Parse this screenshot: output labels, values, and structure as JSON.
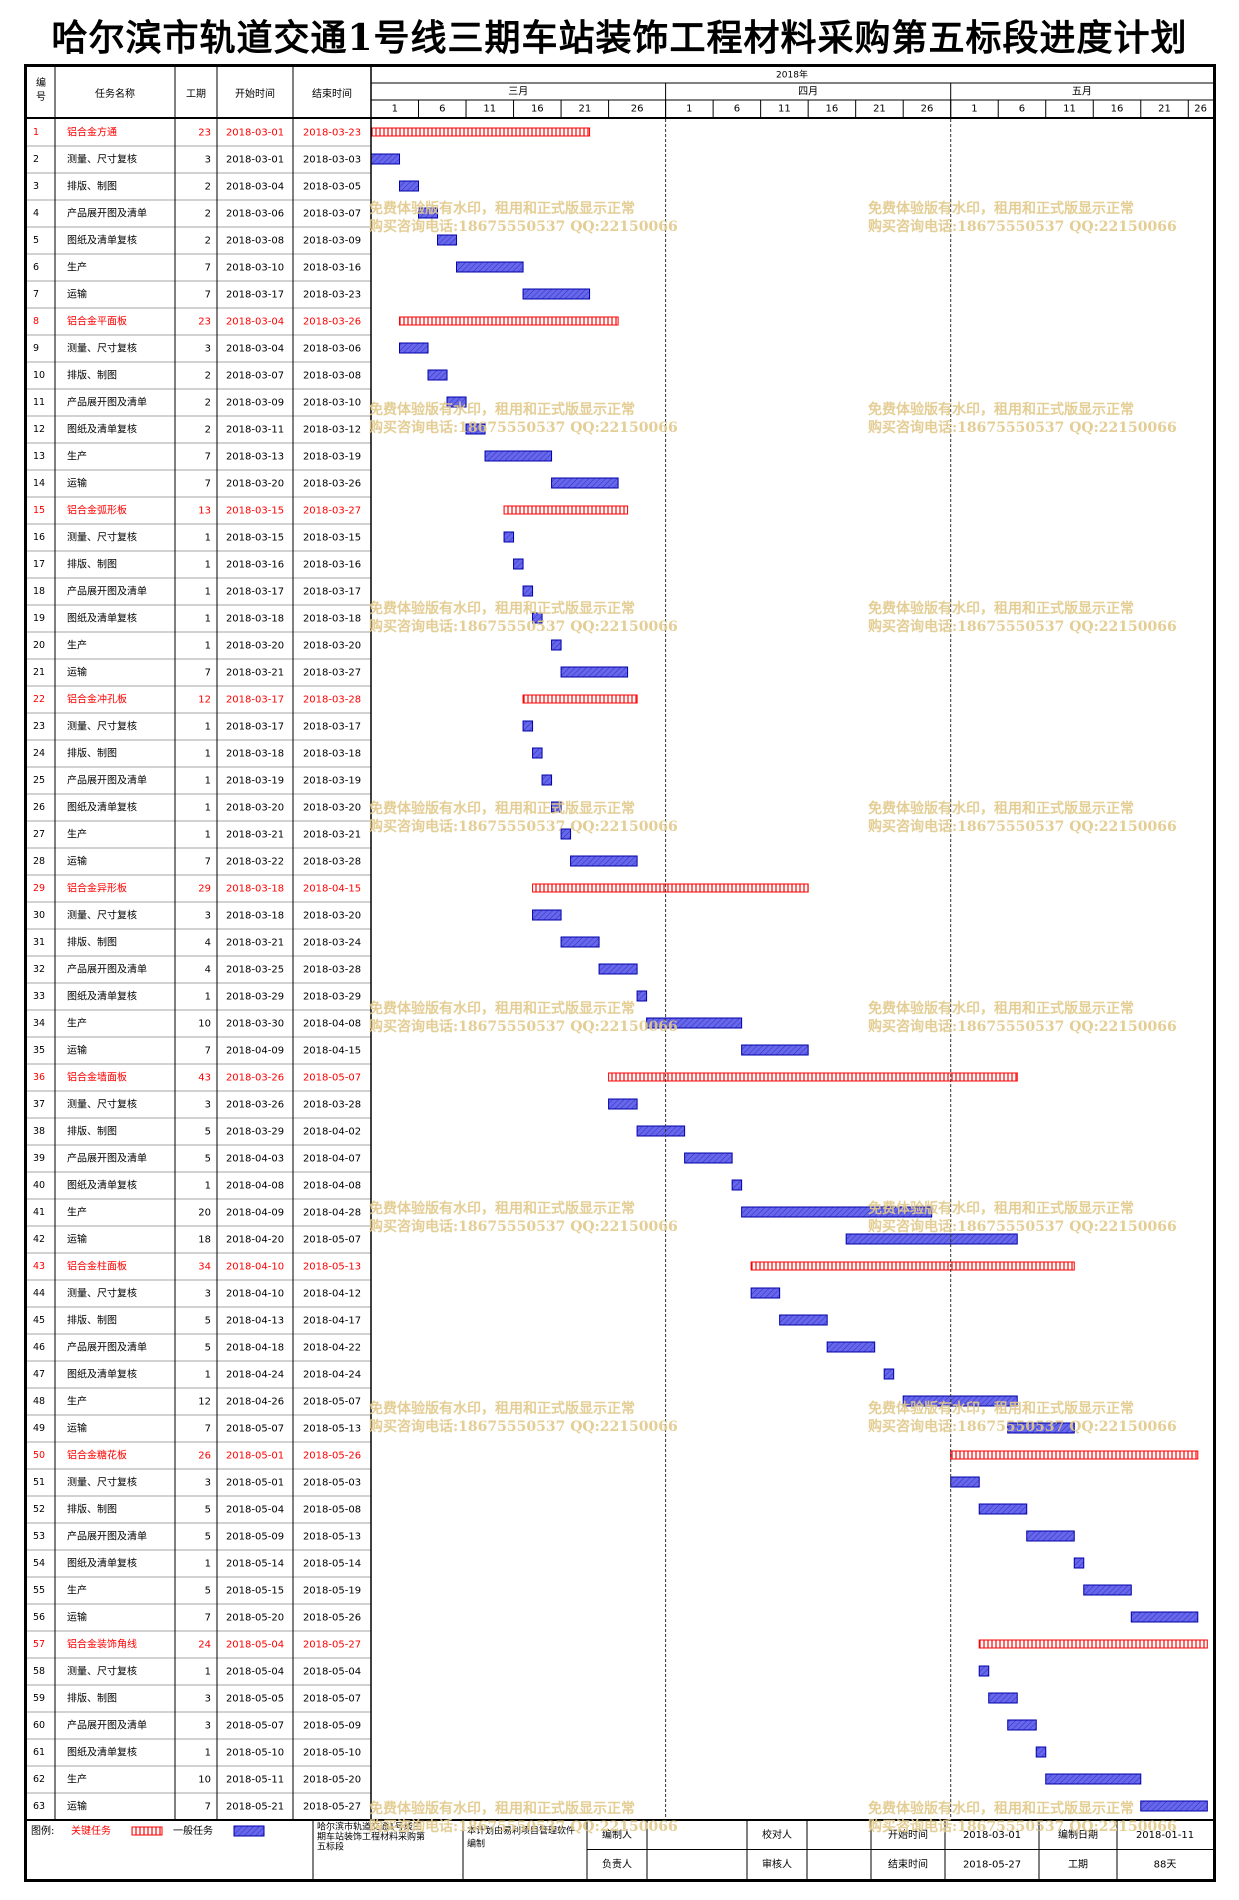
{
  "title": "哈尔滨市轨道交通1号线三期车站装饰工程材料采购第五标段进度计划",
  "columns": {
    "id": "编号",
    "name": "任务名称",
    "duration": "工期",
    "start": "开始时间",
    "end": "结束时间"
  },
  "chart_data": {
    "type": "gantt",
    "year_label": "2018年",
    "months": [
      {
        "label": "三月",
        "days": [
          1,
          6,
          11,
          16,
          21,
          26
        ]
      },
      {
        "label": "四月",
        "days": [
          1,
          6,
          11,
          16,
          21,
          26
        ]
      },
      {
        "label": "五月",
        "days": [
          1,
          6,
          11,
          16,
          21,
          26
        ]
      }
    ],
    "x_range": [
      "2018-03-01",
      "2018-05-27"
    ],
    "tasks": [
      {
        "id": "1",
        "name": "铝合金方通",
        "duration": 23,
        "start": "2018-03-01",
        "end": "2018-03-23",
        "critical": true
      },
      {
        "id": "2",
        "name": "测量、尺寸复核",
        "duration": 3,
        "start": "2018-03-01",
        "end": "2018-03-03",
        "critical": false
      },
      {
        "id": "3",
        "name": "排版、制图",
        "duration": 2,
        "start": "2018-03-04",
        "end": "2018-03-05",
        "critical": false
      },
      {
        "id": "4",
        "name": "产品展开图及清单",
        "duration": 2,
        "start": "2018-03-06",
        "end": "2018-03-07",
        "critical": false
      },
      {
        "id": "5",
        "name": "图纸及清单复核",
        "duration": 2,
        "start": "2018-03-08",
        "end": "2018-03-09",
        "critical": false
      },
      {
        "id": "6",
        "name": "生产",
        "duration": 7,
        "start": "2018-03-10",
        "end": "2018-03-16",
        "critical": false
      },
      {
        "id": "7",
        "name": "运输",
        "duration": 7,
        "start": "2018-03-17",
        "end": "2018-03-23",
        "critical": false
      },
      {
        "id": "8",
        "name": "铝合金平面板",
        "duration": 23,
        "start": "2018-03-04",
        "end": "2018-03-26",
        "critical": true
      },
      {
        "id": "9",
        "name": "测量、尺寸复核",
        "duration": 3,
        "start": "2018-03-04",
        "end": "2018-03-06",
        "critical": false
      },
      {
        "id": "10",
        "name": "排版、制图",
        "duration": 2,
        "start": "2018-03-07",
        "end": "2018-03-08",
        "critical": false
      },
      {
        "id": "11",
        "name": "产品展开图及清单",
        "duration": 2,
        "start": "2018-03-09",
        "end": "2018-03-10",
        "critical": false
      },
      {
        "id": "12",
        "name": "图纸及清单复核",
        "duration": 2,
        "start": "2018-03-11",
        "end": "2018-03-12",
        "critical": false
      },
      {
        "id": "13",
        "name": "生产",
        "duration": 7,
        "start": "2018-03-13",
        "end": "2018-03-19",
        "critical": false
      },
      {
        "id": "14",
        "name": "运输",
        "duration": 7,
        "start": "2018-03-20",
        "end": "2018-03-26",
        "critical": false
      },
      {
        "id": "15",
        "name": "铝合金弧形板",
        "duration": 13,
        "start": "2018-03-15",
        "end": "2018-03-27",
        "critical": true
      },
      {
        "id": "16",
        "name": "测量、尺寸复核",
        "duration": 1,
        "start": "2018-03-15",
        "end": "2018-03-15",
        "critical": false
      },
      {
        "id": "17",
        "name": "排版、制图",
        "duration": 1,
        "start": "2018-03-16",
        "end": "2018-03-16",
        "critical": false
      },
      {
        "id": "18",
        "name": "产品展开图及清单",
        "duration": 1,
        "start": "2018-03-17",
        "end": "2018-03-17",
        "critical": false
      },
      {
        "id": "19",
        "name": "图纸及清单复核",
        "duration": 1,
        "start": "2018-03-18",
        "end": "2018-03-18",
        "critical": false
      },
      {
        "id": "20",
        "name": "生产",
        "duration": 1,
        "start": "2018-03-20",
        "end": "2018-03-20",
        "critical": false
      },
      {
        "id": "21",
        "name": "运输",
        "duration": 7,
        "start": "2018-03-21",
        "end": "2018-03-27",
        "critical": false
      },
      {
        "id": "22",
        "name": "铝合金冲孔板",
        "duration": 12,
        "start": "2018-03-17",
        "end": "2018-03-28",
        "critical": true
      },
      {
        "id": "23",
        "name": "测量、尺寸复核",
        "duration": 1,
        "start": "2018-03-17",
        "end": "2018-03-17",
        "critical": false
      },
      {
        "id": "24",
        "name": "排版、制图",
        "duration": 1,
        "start": "2018-03-18",
        "end": "2018-03-18",
        "critical": false
      },
      {
        "id": "25",
        "name": "产品展开图及清单",
        "duration": 1,
        "start": "2018-03-19",
        "end": "2018-03-19",
        "critical": false
      },
      {
        "id": "26",
        "name": "图纸及清单复核",
        "duration": 1,
        "start": "2018-03-20",
        "end": "2018-03-20",
        "critical": false
      },
      {
        "id": "27",
        "name": "生产",
        "duration": 1,
        "start": "2018-03-21",
        "end": "2018-03-21",
        "critical": false
      },
      {
        "id": "28",
        "name": "运输",
        "duration": 7,
        "start": "2018-03-22",
        "end": "2018-03-28",
        "critical": false
      },
      {
        "id": "29",
        "name": "铝合金异形板",
        "duration": 29,
        "start": "2018-03-18",
        "end": "2018-04-15",
        "critical": true
      },
      {
        "id": "30",
        "name": "测量、尺寸复核",
        "duration": 3,
        "start": "2018-03-18",
        "end": "2018-03-20",
        "critical": false
      },
      {
        "id": "31",
        "name": "排版、制图",
        "duration": 4,
        "start": "2018-03-21",
        "end": "2018-03-24",
        "critical": false
      },
      {
        "id": "32",
        "name": "产品展开图及清单",
        "duration": 4,
        "start": "2018-03-25",
        "end": "2018-03-28",
        "critical": false
      },
      {
        "id": "33",
        "name": "图纸及清单复核",
        "duration": 1,
        "start": "2018-03-29",
        "end": "2018-03-29",
        "critical": false
      },
      {
        "id": "34",
        "name": "生产",
        "duration": 10,
        "start": "2018-03-30",
        "end": "2018-04-08",
        "critical": false
      },
      {
        "id": "35",
        "name": "运输",
        "duration": 7,
        "start": "2018-04-09",
        "end": "2018-04-15",
        "critical": false
      },
      {
        "id": "36",
        "name": "铝合金墙面板",
        "duration": 43,
        "start": "2018-03-26",
        "end": "2018-05-07",
        "critical": true
      },
      {
        "id": "37",
        "name": "测量、尺寸复核",
        "duration": 3,
        "start": "2018-03-26",
        "end": "2018-03-28",
        "critical": false
      },
      {
        "id": "38",
        "name": "排版、制图",
        "duration": 5,
        "start": "2018-03-29",
        "end": "2018-04-02",
        "critical": false
      },
      {
        "id": "39",
        "name": "产品展开图及清单",
        "duration": 5,
        "start": "2018-04-03",
        "end": "2018-04-07",
        "critical": false
      },
      {
        "id": "40",
        "name": "图纸及清单复核",
        "duration": 1,
        "start": "2018-04-08",
        "end": "2018-04-08",
        "critical": false
      },
      {
        "id": "41",
        "name": "生产",
        "duration": 20,
        "start": "2018-04-09",
        "end": "2018-04-28",
        "critical": false
      },
      {
        "id": "42",
        "name": "运输",
        "duration": 18,
        "start": "2018-04-20",
        "end": "2018-05-07",
        "critical": false
      },
      {
        "id": "43",
        "name": "铝合金柱面板",
        "duration": 34,
        "start": "2018-04-10",
        "end": "2018-05-13",
        "critical": true
      },
      {
        "id": "44",
        "name": "测量、尺寸复核",
        "duration": 3,
        "start": "2018-04-10",
        "end": "2018-04-12",
        "critical": false
      },
      {
        "id": "45",
        "name": "排版、制图",
        "duration": 5,
        "start": "2018-04-13",
        "end": "2018-04-17",
        "critical": false
      },
      {
        "id": "46",
        "name": "产品展开图及清单",
        "duration": 5,
        "start": "2018-04-18",
        "end": "2018-04-22",
        "critical": false
      },
      {
        "id": "47",
        "name": "图纸及清单复核",
        "duration": 1,
        "start": "2018-04-24",
        "end": "2018-04-24",
        "critical": false
      },
      {
        "id": "48",
        "name": "生产",
        "duration": 12,
        "start": "2018-04-26",
        "end": "2018-05-07",
        "critical": false
      },
      {
        "id": "49",
        "name": "运输",
        "duration": 7,
        "start": "2018-05-07",
        "end": "2018-05-13",
        "critical": false
      },
      {
        "id": "50",
        "name": "铝合金糖花板",
        "duration": 26,
        "start": "2018-05-01",
        "end": "2018-05-26",
        "critical": true
      },
      {
        "id": "51",
        "name": "测量、尺寸复核",
        "duration": 3,
        "start": "2018-05-01",
        "end": "2018-05-03",
        "critical": false
      },
      {
        "id": "52",
        "name": "排版、制图",
        "duration": 5,
        "start": "2018-05-04",
        "end": "2018-05-08",
        "critical": false
      },
      {
        "id": "53",
        "name": "产品展开图及清单",
        "duration": 5,
        "start": "2018-05-09",
        "end": "2018-05-13",
        "critical": false
      },
      {
        "id": "54",
        "name": "图纸及清单复核",
        "duration": 1,
        "start": "2018-05-14",
        "end": "2018-05-14",
        "critical": false
      },
      {
        "id": "55",
        "name": "生产",
        "duration": 5,
        "start": "2018-05-15",
        "end": "2018-05-19",
        "critical": false
      },
      {
        "id": "56",
        "name": "运输",
        "duration": 7,
        "start": "2018-05-20",
        "end": "2018-05-26",
        "critical": false
      },
      {
        "id": "57",
        "name": "铝合金装饰角线",
        "duration": 24,
        "start": "2018-05-04",
        "end": "2018-05-27",
        "critical": true
      },
      {
        "id": "58",
        "name": "测量、尺寸复核",
        "duration": 1,
        "start": "2018-05-04",
        "end": "2018-05-04",
        "critical": false
      },
      {
        "id": "59",
        "name": "排版、制图",
        "duration": 3,
        "start": "2018-05-05",
        "end": "2018-05-07",
        "critical": false
      },
      {
        "id": "60",
        "name": "产品展开图及清单",
        "duration": 3,
        "start": "2018-05-07",
        "end": "2018-05-09",
        "critical": false
      },
      {
        "id": "61",
        "name": "图纸及清单复核",
        "duration": 1,
        "start": "2018-05-10",
        "end": "2018-05-10",
        "critical": false
      },
      {
        "id": "62",
        "name": "生产",
        "duration": 10,
        "start": "2018-05-11",
        "end": "2018-05-20",
        "critical": false
      },
      {
        "id": "63",
        "name": "运输",
        "duration": 7,
        "start": "2018-05-21",
        "end": "2018-05-27",
        "critical": false
      }
    ],
    "colors": {
      "critical": "#ff0000",
      "normal_fill": "#6666ee",
      "normal_stroke": "#0000aa",
      "critical_text": "#ff0000"
    }
  },
  "footer": {
    "legend_label": "图例:",
    "critical_label": "关键任务",
    "normal_label": "一般任务",
    "project_name": "哈尔滨市轨道交通1号线三期车站装饰工程材料采购第五标段",
    "software_note": "本计划由易利项目管理软件编制",
    "editor_label": "编制人",
    "editor_value": "",
    "checker_label": "校对人",
    "checker_value": "",
    "owner_label": "负责人",
    "owner_value": "",
    "reviewer_label": "审核人",
    "reviewer_value": "",
    "start_label": "开始时间",
    "start_value": "2018-03-01",
    "made_date_label": "编制日期",
    "made_date_value": "2018-01-11",
    "end_label": "结束时间",
    "end_value": "2018-05-27",
    "duration_label": "工期",
    "duration_value": "88天"
  },
  "watermark": {
    "line1": "免费体验版有水印，租用和正式版显示正常",
    "line2": "购买咨询电话:18675550537 QQ:22150066"
  }
}
